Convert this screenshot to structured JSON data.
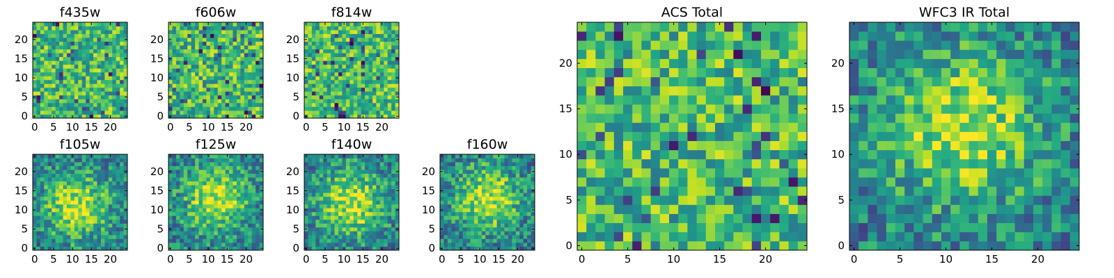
{
  "figure": {
    "colormap": "viridis",
    "colors": {
      "frame": "#000000",
      "background": "#ffffff",
      "viridis_low": "#440154",
      "viridis_mid": "#21918c",
      "viridis_high": "#fde725"
    }
  },
  "chart_data": [
    {
      "type": "heatmap",
      "id": "f435w",
      "title": "f435w",
      "grid": [
        25,
        25
      ],
      "pattern": "noise",
      "peak": [
        12,
        12
      ],
      "spread": 7,
      "xlim": [
        -0.5,
        24.5
      ],
      "ylim": [
        -0.5,
        24.5
      ],
      "xticks": [
        0,
        5,
        10,
        15,
        20
      ],
      "yticks": [
        0,
        5,
        10,
        15,
        20
      ],
      "xlabel": "",
      "ylabel": ""
    },
    {
      "type": "heatmap",
      "id": "f606w",
      "title": "f606w",
      "grid": [
        25,
        25
      ],
      "pattern": "noise",
      "peak": [
        12,
        12
      ],
      "spread": 7,
      "xlim": [
        -0.5,
        24.5
      ],
      "ylim": [
        -0.5,
        24.5
      ],
      "xticks": [
        0,
        5,
        10,
        15,
        20
      ],
      "yticks": [
        0,
        5,
        10,
        15,
        20
      ],
      "xlabel": "",
      "ylabel": ""
    },
    {
      "type": "heatmap",
      "id": "f814w",
      "title": "f814w",
      "grid": [
        25,
        25
      ],
      "pattern": "noise",
      "peak": [
        12,
        12
      ],
      "spread": 7,
      "xlim": [
        -0.5,
        24.5
      ],
      "ylim": [
        -0.5,
        24.5
      ],
      "xticks": [
        0,
        5,
        10,
        15,
        20
      ],
      "yticks": [
        0,
        5,
        10,
        15,
        20
      ],
      "xlabel": "",
      "ylabel": ""
    },
    {
      "type": "heatmap",
      "id": "f105w",
      "title": "f105w",
      "grid": [
        25,
        25
      ],
      "pattern": "blob",
      "peak": [
        11,
        11
      ],
      "spread": 6,
      "xlim": [
        -0.5,
        24.5
      ],
      "ylim": [
        -0.5,
        24.5
      ],
      "xticks": [
        0,
        5,
        10,
        15,
        20
      ],
      "yticks": [
        0,
        5,
        10,
        15,
        20
      ],
      "xlabel": "",
      "ylabel": ""
    },
    {
      "type": "heatmap",
      "id": "f125w",
      "title": "f125w",
      "grid": [
        25,
        25
      ],
      "pattern": "blob",
      "peak": [
        12,
        13
      ],
      "spread": 6,
      "xlim": [
        -0.5,
        24.5
      ],
      "ylim": [
        -0.5,
        24.5
      ],
      "xticks": [
        0,
        5,
        10,
        15,
        20
      ],
      "yticks": [
        0,
        5,
        10,
        15,
        20
      ],
      "xlabel": "",
      "ylabel": ""
    },
    {
      "type": "heatmap",
      "id": "f140w",
      "title": "f140w",
      "grid": [
        25,
        25
      ],
      "pattern": "blob",
      "peak": [
        12,
        12
      ],
      "spread": 6,
      "xlim": [
        -0.5,
        24.5
      ],
      "ylim": [
        -0.5,
        24.5
      ],
      "xticks": [
        0,
        5,
        10,
        15,
        20
      ],
      "yticks": [
        0,
        5,
        10,
        15,
        20
      ],
      "xlabel": "",
      "ylabel": ""
    },
    {
      "type": "heatmap",
      "id": "f160w",
      "title": "f160w",
      "grid": [
        25,
        25
      ],
      "pattern": "blob",
      "peak": [
        12,
        13
      ],
      "spread": 6,
      "xlim": [
        -0.5,
        24.5
      ],
      "ylim": [
        -0.5,
        24.5
      ],
      "xticks": [
        0,
        5,
        10,
        15,
        20
      ],
      "yticks": [
        0,
        5,
        10,
        15,
        20
      ],
      "xlabel": "",
      "ylabel": ""
    },
    {
      "type": "heatmap",
      "id": "acs-total",
      "title": "ACS Total",
      "grid": [
        25,
        25
      ],
      "pattern": "noise",
      "peak": [
        12,
        12
      ],
      "spread": 7,
      "xlim": [
        -0.5,
        24.5
      ],
      "ylim": [
        -0.5,
        24.5
      ],
      "xticks": [
        0,
        5,
        10,
        15,
        20
      ],
      "yticks": [
        0,
        5,
        10,
        15,
        20
      ],
      "xlabel": "",
      "ylabel": ""
    },
    {
      "type": "heatmap",
      "id": "wfc3-ir-total",
      "title": "WFC3 IR Total",
      "grid": [
        25,
        25
      ],
      "pattern": "blob",
      "peak": [
        12,
        13
      ],
      "spread": 6,
      "xlim": [
        -0.5,
        24.5
      ],
      "ylim": [
        -0.5,
        24.5
      ],
      "xticks": [
        0,
        5,
        10,
        15,
        20
      ],
      "yticks": [
        0,
        5,
        10,
        15,
        20
      ],
      "xlabel": "",
      "ylabel": ""
    }
  ]
}
